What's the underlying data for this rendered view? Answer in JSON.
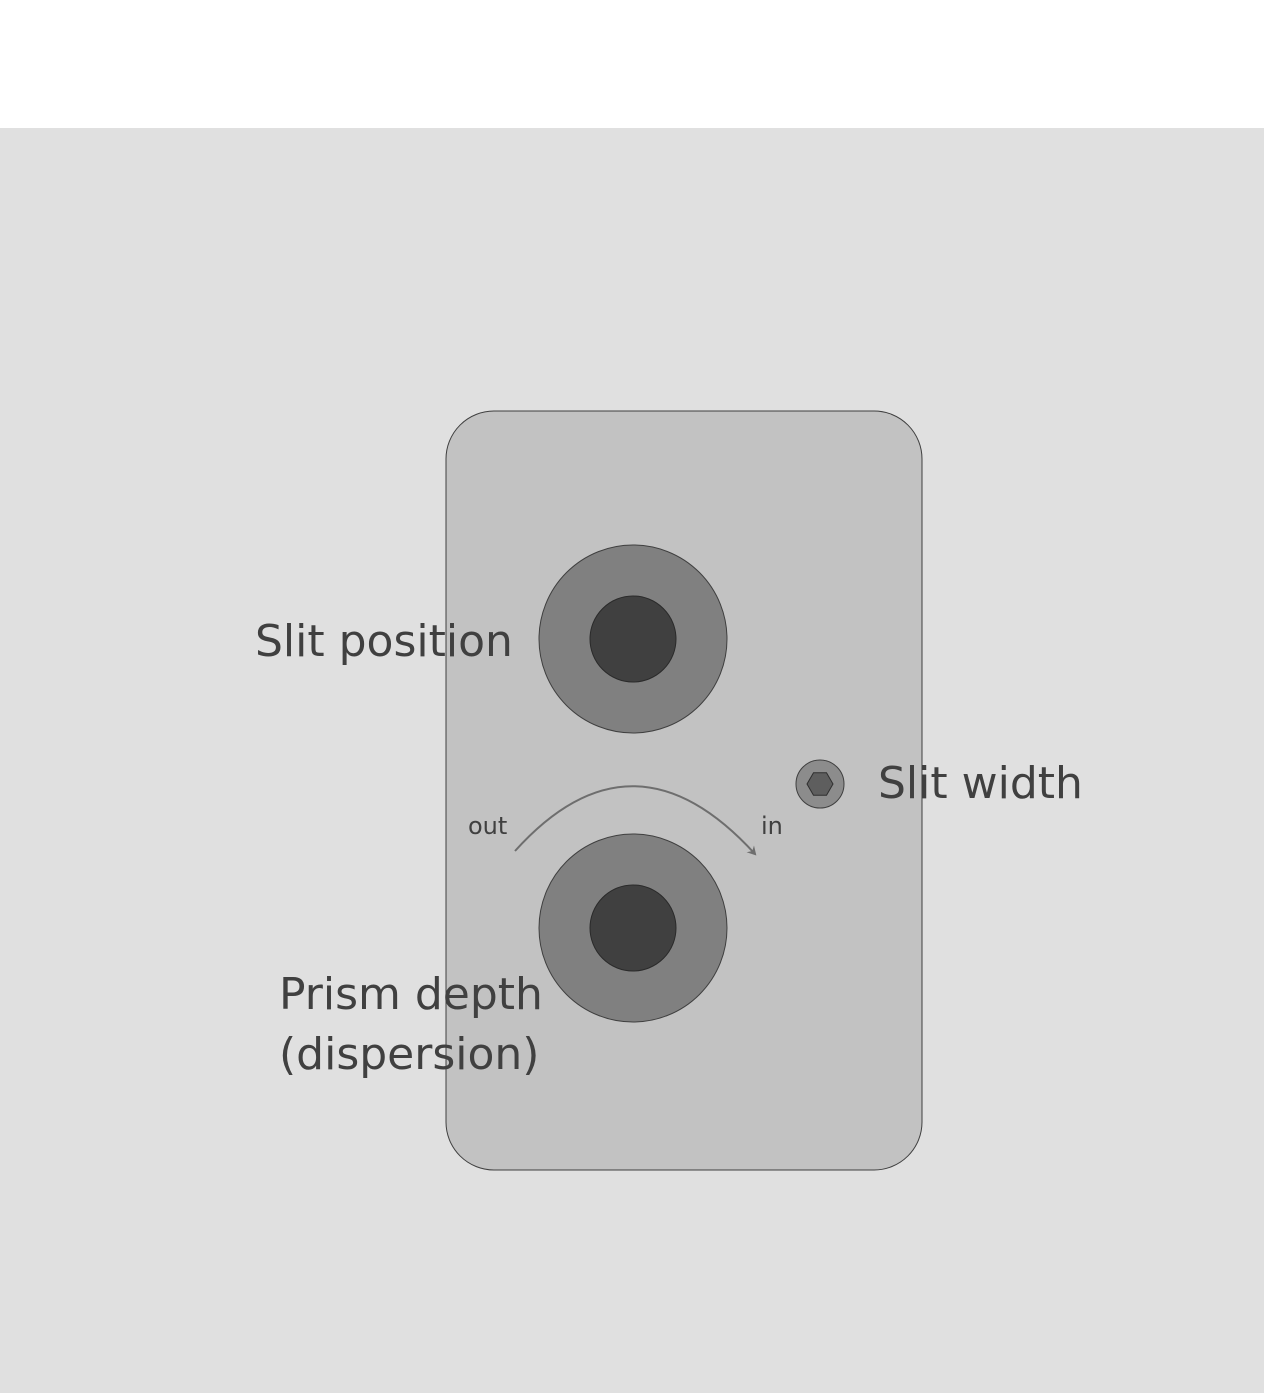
{
  "labels": {
    "slit_position": "Slit position",
    "slit_width": "Slit width",
    "prism_depth_line1": "Prism depth",
    "prism_depth_line2": "(dispersion)",
    "direction_out": "out",
    "direction_in": "in"
  },
  "colors": {
    "page_background": "#ffffff",
    "backdrop": "#e0e0e0",
    "panel_fill": "#c2c2c2",
    "panel_stroke": "#3f3f3f",
    "knob_outer": "#808080",
    "knob_inner": "#404040",
    "screw_outer": "#8c8c8c",
    "screw_hex": "#5e5e5e",
    "arrow": "#6e6e6e",
    "label_text": "#404040"
  },
  "icons": {
    "slit_position_knob": "knob-icon",
    "prism_depth_knob": "knob-icon",
    "slit_width_screw": "hex-screw-icon",
    "rotation_arrow": "curved-arrow-icon"
  }
}
